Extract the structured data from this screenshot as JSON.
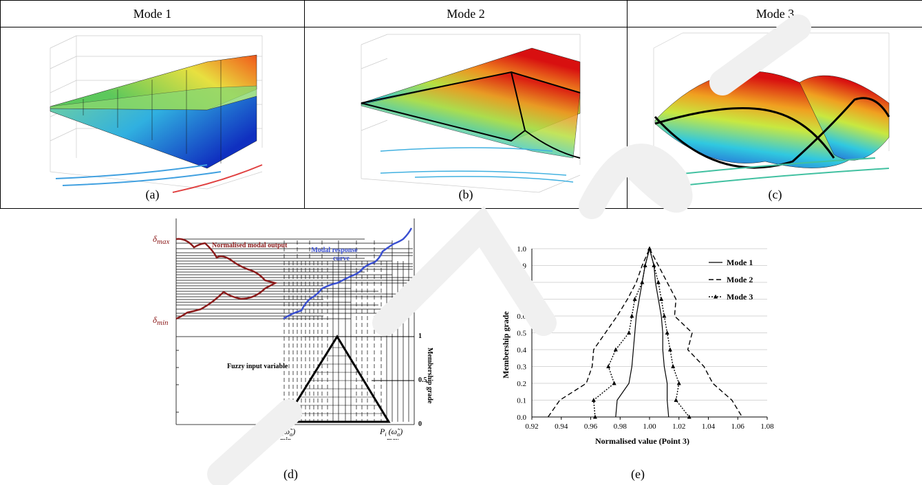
{
  "table": {
    "headers": [
      "Mode 1",
      "Mode 2",
      "Mode 3"
    ],
    "captions": [
      "(a)",
      "(b)",
      "(c)"
    ]
  },
  "panel_d": {
    "delta_max": "max",
    "delta_min": "min",
    "normalised_label": "Normalised modal output",
    "modal_response_1": "Modal response",
    "modal_response_2": "curve",
    "fuzzy_label": "Fuzzy input variable",
    "membership_label": "Membership grade",
    "grade_1": "1",
    "grade_05": "0.5",
    "grade_0": "0",
    "p_min_sub": "min",
    "p_max_sub": "max",
    "caption": "(d)",
    "colors": {
      "modal_output": "#8b1a1a",
      "response": "#3a4fd0"
    }
  },
  "panel_e": {
    "caption": "(e)"
  },
  "chart_data": {
    "type": "line",
    "xlabel": "Normalised value (Point 3)",
    "ylabel": "Membership grade",
    "xlim": [
      0.92,
      1.08
    ],
    "ylim": [
      0.0,
      1.0
    ],
    "x_ticks": [
      "0.92",
      "0.94",
      "0.96",
      "0.98",
      "1.00",
      "1.02",
      "1.04",
      "1.06",
      "1.08"
    ],
    "y_ticks": [
      "0.0",
      "0.1",
      "0.2",
      "0.3",
      "0.4",
      "0.5",
      "0.6",
      "0.7",
      "0.8",
      "0.9",
      "1.0"
    ],
    "grid": "horizontal",
    "legend": "right",
    "series": [
      {
        "name": "Mode 1",
        "style": "solid",
        "left": [
          [
            0.977,
            0.0
          ],
          [
            0.978,
            0.1
          ],
          [
            0.986,
            0.2
          ],
          [
            0.988,
            0.3
          ],
          [
            0.989,
            0.4
          ],
          [
            0.99,
            0.5
          ],
          [
            0.991,
            0.6
          ],
          [
            0.993,
            0.7
          ],
          [
            0.995,
            0.8
          ],
          [
            0.997,
            0.9
          ],
          [
            1.0,
            1.0
          ]
        ],
        "right": [
          [
            1.0,
            1.0
          ],
          [
            1.003,
            0.9
          ],
          [
            1.004,
            0.8
          ],
          [
            1.006,
            0.7
          ],
          [
            1.008,
            0.6
          ],
          [
            1.009,
            0.5
          ],
          [
            1.009,
            0.4
          ],
          [
            1.01,
            0.3
          ],
          [
            1.012,
            0.2
          ],
          [
            1.012,
            0.1
          ],
          [
            1.013,
            0.0
          ]
        ]
      },
      {
        "name": "Mode 2",
        "style": "dashed",
        "left": [
          [
            0.931,
            0.0
          ],
          [
            0.939,
            0.1
          ],
          [
            0.957,
            0.2
          ],
          [
            0.961,
            0.3
          ],
          [
            0.962,
            0.4
          ],
          [
            0.97,
            0.5
          ],
          [
            0.978,
            0.6
          ],
          [
            0.985,
            0.7
          ],
          [
            0.991,
            0.8
          ],
          [
            0.995,
            0.9
          ],
          [
            1.0,
            1.0
          ]
        ],
        "right": [
          [
            1.0,
            1.0
          ],
          [
            1.006,
            0.9
          ],
          [
            1.012,
            0.8
          ],
          [
            1.018,
            0.7
          ],
          [
            1.017,
            0.6
          ],
          [
            1.029,
            0.5
          ],
          [
            1.026,
            0.4
          ],
          [
            1.037,
            0.3
          ],
          [
            1.043,
            0.2
          ],
          [
            1.056,
            0.1
          ],
          [
            1.063,
            0.0
          ]
        ]
      },
      {
        "name": "Mode 3",
        "style": "dotted-triangle",
        "left": [
          [
            0.963,
            0.0
          ],
          [
            0.962,
            0.1
          ],
          [
            0.976,
            0.2
          ],
          [
            0.972,
            0.3
          ],
          [
            0.977,
            0.4
          ],
          [
            0.986,
            0.5
          ],
          [
            0.988,
            0.6
          ],
          [
            0.99,
            0.7
          ],
          [
            0.995,
            0.8
          ],
          [
            0.997,
            0.9
          ],
          [
            1.0,
            1.0
          ]
        ],
        "right": [
          [
            1.0,
            1.0
          ],
          [
            1.003,
            0.9
          ],
          [
            1.006,
            0.8
          ],
          [
            1.008,
            0.7
          ],
          [
            1.01,
            0.6
          ],
          [
            1.012,
            0.5
          ],
          [
            1.014,
            0.4
          ],
          [
            1.016,
            0.3
          ],
          [
            1.02,
            0.2
          ],
          [
            1.018,
            0.1
          ],
          [
            1.027,
            0.0
          ]
        ]
      }
    ]
  }
}
